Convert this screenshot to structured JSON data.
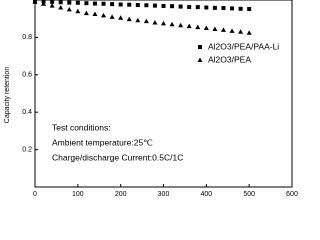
{
  "chart_data": {
    "type": "scatter",
    "y_label": "Capacity retention",
    "x": [
      0,
      20,
      40,
      60,
      80,
      100,
      120,
      140,
      160,
      180,
      200,
      220,
      240,
      260,
      280,
      300,
      320,
      340,
      360,
      380,
      400,
      420,
      440,
      460,
      480,
      500
    ],
    "series": [
      {
        "name": "Al2O3/PEA/PAA-Li",
        "marker": "square",
        "color": "#000000",
        "values": [
          0.995,
          0.993,
          0.99,
          0.988,
          0.986,
          0.985,
          0.983,
          0.981,
          0.98,
          0.978,
          0.976,
          0.975,
          0.973,
          0.972,
          0.97,
          0.968,
          0.967,
          0.965,
          0.963,
          0.962,
          0.96,
          0.958,
          0.957,
          0.955,
          0.953,
          0.952
        ]
      },
      {
        "name": "Al2O3/PEA",
        "marker": "triangle",
        "color": "#000000",
        "values": [
          0.99,
          0.98,
          0.97,
          0.96,
          0.95,
          0.94,
          0.93,
          0.925,
          0.918,
          0.91,
          0.905,
          0.898,
          0.892,
          0.887,
          0.88,
          0.875,
          0.87,
          0.865,
          0.86,
          0.855,
          0.85,
          0.845,
          0.84,
          0.835,
          0.83,
          0.825
        ]
      }
    ],
    "annotations": [
      "Test conditions:",
      "Ambient temperature:25℃",
      "Charge/discharge Current:0.5C/1C"
    ],
    "xlim": [
      0,
      600
    ],
    "xticks": [
      0,
      100,
      200,
      300,
      400,
      500,
      600
    ],
    "ylim": [
      0,
      1.0
    ],
    "yticks": [
      0.2,
      0.4,
      0.6,
      0.8
    ],
    "legend": "upper right"
  }
}
